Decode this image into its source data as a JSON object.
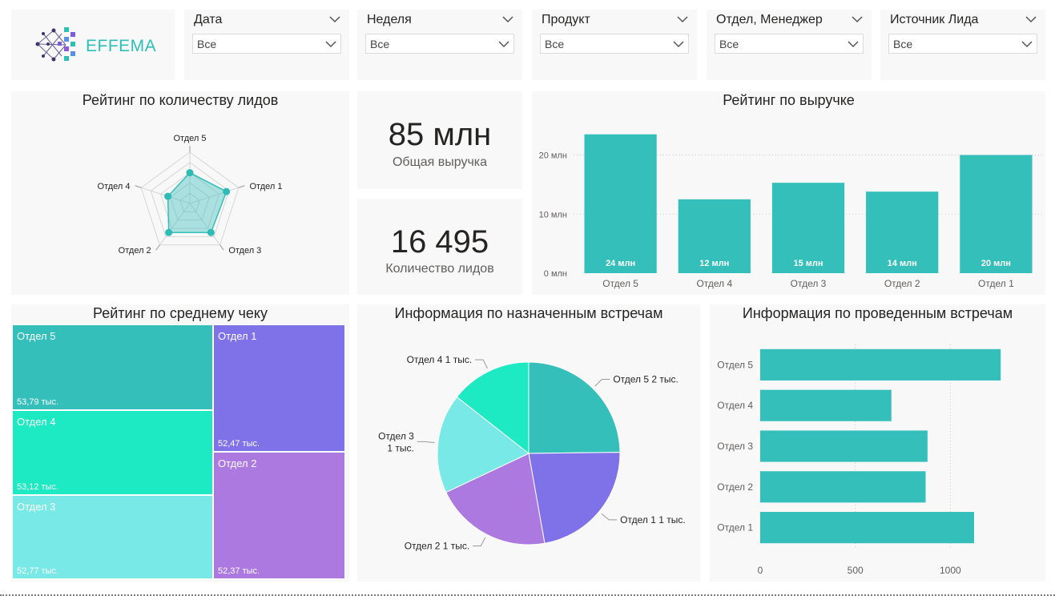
{
  "brand": {
    "logo_text": "EFFEMA",
    "colors": {
      "teal": "#34bfbb",
      "purple": "#7f71e8",
      "mint": "#1de9c2",
      "light_cyan": "#78e9e6",
      "violet": "#ab79e0"
    }
  },
  "filters": [
    {
      "title": "Дата",
      "value": "Все"
    },
    {
      "title": "Неделя",
      "value": "Все"
    },
    {
      "title": "Продукт",
      "value": "Все"
    },
    {
      "title": "Отдел, Менеджер",
      "value": "Все"
    },
    {
      "title": "Источник Лида",
      "value": "Все"
    }
  ],
  "radar": {
    "title": "Рейтинг по количеству лидов",
    "chart_data": {
      "type": "radar",
      "axes": [
        "Отдел 5",
        "Отдел 1",
        "Отдел 3",
        "Отдел 2",
        "Отдел 4"
      ],
      "values": [
        0.6,
        0.75,
        0.7,
        0.7,
        0.45
      ],
      "max": 1.0
    }
  },
  "kpis": [
    {
      "value": "85 млн",
      "label": "Общая выручка"
    },
    {
      "value": "16 495",
      "label": "Количество лидов"
    }
  ],
  "revenue": {
    "title": "Рейтинг по выручке",
    "chart_data": {
      "type": "bar",
      "categories": [
        "Отдел 5",
        "Отдел 4",
        "Отдел 3",
        "Отдел 2",
        "Отдел 1"
      ],
      "values": [
        23.5,
        12.5,
        15.3,
        13.8,
        20.0
      ],
      "data_labels": [
        "24 млн",
        "12 млн",
        "15 млн",
        "14 млн",
        "20 млн"
      ],
      "y_ticks": [
        0,
        10,
        20
      ],
      "y_tick_labels": [
        "0 млн",
        "10 млн",
        "20 млн"
      ],
      "ylim": [
        0,
        24
      ],
      "grid": true
    }
  },
  "treemap": {
    "title": "Рейтинг по среднему чеку",
    "chart_data": {
      "type": "treemap",
      "items": [
        {
          "name": "Отдел 5",
          "value": 53.79,
          "label": "53,79 тыс.",
          "color": "#34bfbb"
        },
        {
          "name": "Отдел 4",
          "value": 53.12,
          "label": "53,12 тыс.",
          "color": "#1de9c2"
        },
        {
          "name": "Отдел 3",
          "value": 52.77,
          "label": "52,77 тыс.",
          "color": "#78e9e6"
        },
        {
          "name": "Отдел 1",
          "value": 52.47,
          "label": "52,47 тыс.",
          "color": "#7f71e8"
        },
        {
          "name": "Отдел 2",
          "value": 52.37,
          "label": "52,37 тыс.",
          "color": "#ab79e0"
        }
      ]
    }
  },
  "pie": {
    "title": "Информация по назначенным встречам",
    "chart_data": {
      "type": "pie",
      "slices": [
        {
          "name": "Отдел 5",
          "value": 1.55,
          "label": "Отдел 5 2 тыс.",
          "color": "#34bfbb"
        },
        {
          "name": "Отдел 1",
          "value": 1.4,
          "label": "Отдел 1 1 тыс.",
          "color": "#7f71e8"
        },
        {
          "name": "Отдел 2",
          "value": 1.3,
          "label": "Отдел 2 1 тыс.",
          "color": "#ab79e0"
        },
        {
          "name": "Отдел 3",
          "value": 1.1,
          "label": "Отдел 3 1 тыс.",
          "color": "#78e9e6"
        },
        {
          "name": "Отдел 4",
          "value": 0.9,
          "label": "Отдел 4 1 тыс.",
          "color": "#1de9c2"
        }
      ]
    }
  },
  "hbar": {
    "title": "Информация по проведенным встречам",
    "chart_data": {
      "type": "bar",
      "orientation": "horizontal",
      "categories": [
        "Отдел 5",
        "Отдел 4",
        "Отдел 3",
        "Отдел 2",
        "Отдел 1"
      ],
      "values": [
        1265,
        690,
        880,
        870,
        1125
      ],
      "x_ticks": [
        0,
        500,
        1000
      ],
      "xlim": [
        0,
        1500
      ],
      "grid": true
    }
  }
}
